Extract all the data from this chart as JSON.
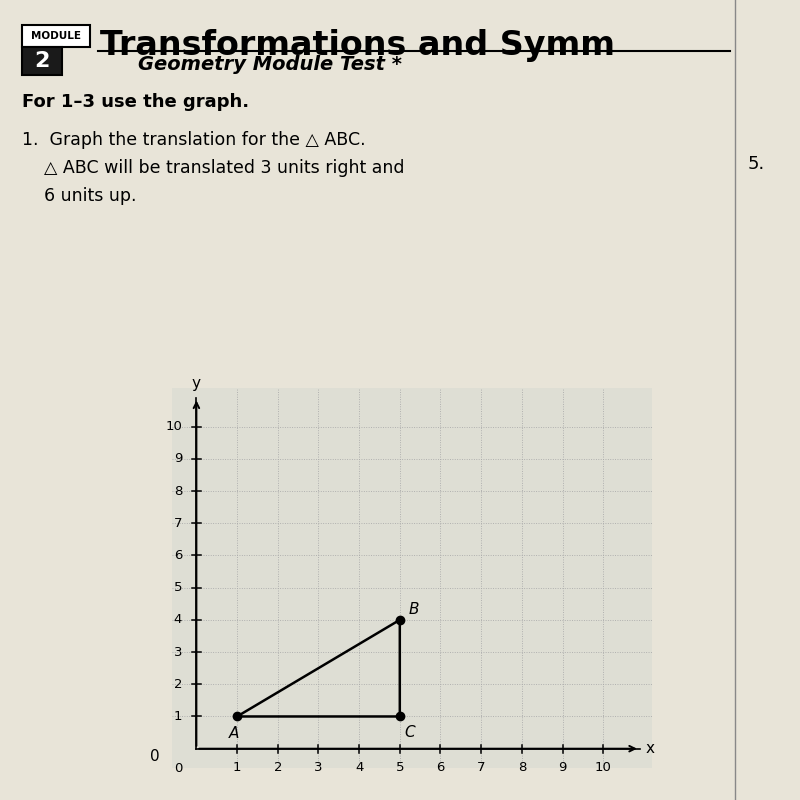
{
  "title_line1": "Transformations and Symm",
  "subtitle": "Geometry Module Test *",
  "module_num": "2",
  "instruction": "For 1–3 use the graph.",
  "problem1": "1.  Graph the translation for the △ ABC.",
  "problem2": "    △ ABC will be translated 3 units right and",
  "problem3": "    6 units up.",
  "triangle_ABC": {
    "A": [
      1,
      1
    ],
    "B": [
      5,
      4
    ],
    "C": [
      5,
      1
    ]
  },
  "translation": [
    3,
    6
  ],
  "xlim_plot": [
    -0.6,
    11.2
  ],
  "ylim_plot": [
    -0.6,
    11.2
  ],
  "xticks": [
    1,
    2,
    3,
    4,
    5,
    6,
    7,
    8,
    9,
    10
  ],
  "yticks": [
    1,
    2,
    3,
    4,
    5,
    6,
    7,
    8,
    9,
    10
  ],
  "grid_color": "#aaaaaa",
  "triangle_color": "black",
  "dot_color": "black",
  "label_color": "black",
  "bg_color": "#deded4",
  "paper_color": "#e8e4d8",
  "dot_size": 55,
  "line_width": 1.8,
  "number5_text": "5."
}
